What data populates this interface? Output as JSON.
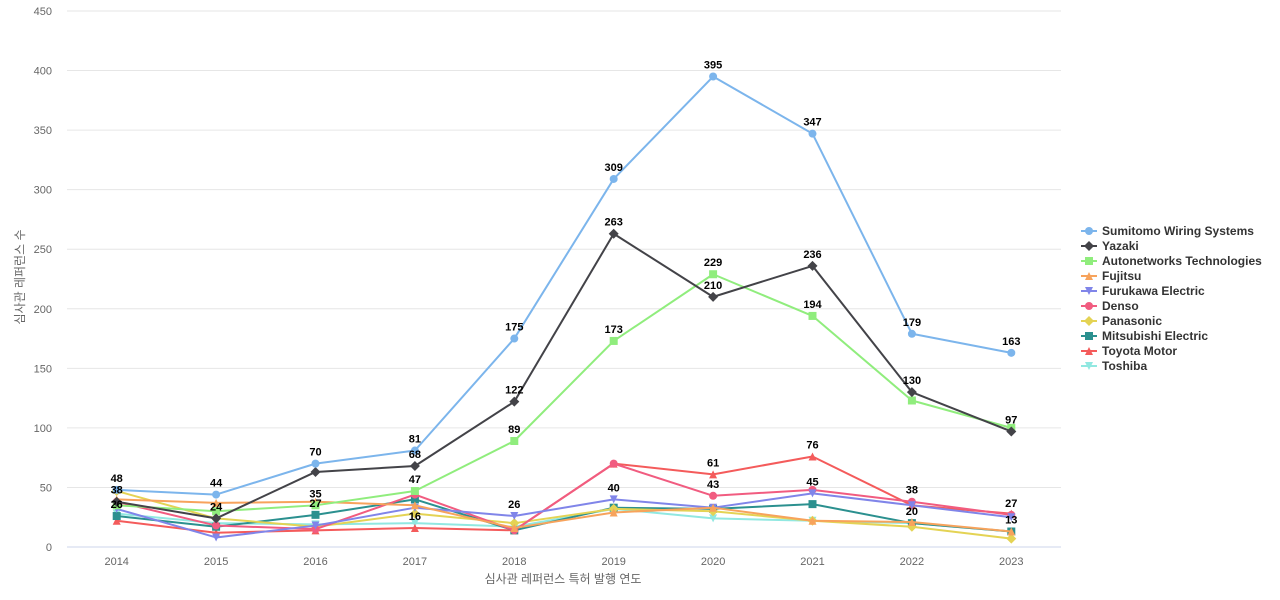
{
  "chart_data": {
    "type": "line",
    "xlabel": "심사관 레퍼런스 특허 발행 연도",
    "ylabel": "심사관 레퍼런스 수",
    "x": [
      "2014",
      "2015",
      "2016",
      "2017",
      "2018",
      "2019",
      "2020",
      "2021",
      "2022",
      "2023"
    ],
    "ylim": [
      0,
      450
    ],
    "yticks": [
      0,
      50,
      100,
      150,
      200,
      250,
      300,
      350,
      400,
      450
    ],
    "grid": "horizontal",
    "legend_position": "right",
    "series": [
      {
        "name": "Sumitomo Wiring Systems",
        "color": "#7cb5ec",
        "marker": "circle",
        "values": [
          48,
          44,
          70,
          81,
          175,
          309,
          395,
          347,
          179,
          163
        ],
        "labeled": true
      },
      {
        "name": "Yazaki",
        "color": "#434348",
        "marker": "diamond",
        "values": [
          38,
          24,
          63,
          68,
          122,
          263,
          210,
          236,
          130,
          97
        ],
        "labeled": [
          true,
          true,
          false,
          true,
          true,
          true,
          true,
          true,
          true,
          true
        ]
      },
      {
        "name": "Autonetworks Technologies",
        "color": "#90ed7d",
        "marker": "square",
        "values": [
          35,
          30,
          35,
          47,
          89,
          173,
          229,
          194,
          123,
          100
        ],
        "labeled": [
          false,
          false,
          true,
          true,
          true,
          true,
          true,
          true,
          false,
          false
        ]
      },
      {
        "name": "Fujitsu",
        "color": "#f7a35c",
        "marker": "triangle",
        "values": [
          40,
          37,
          38,
          35,
          16,
          29,
          33,
          22,
          21,
          13
        ],
        "labeled": false
      },
      {
        "name": "Furukawa Electric",
        "color": "#8085e9",
        "marker": "triangle-down",
        "values": [
          32,
          8,
          18,
          33,
          26,
          40,
          33,
          45,
          35,
          25
        ],
        "labeled": [
          false,
          false,
          false,
          false,
          true,
          true,
          false,
          true,
          false,
          false
        ]
      },
      {
        "name": "Denso",
        "color": "#f15c80",
        "marker": "circle",
        "values": [
          38,
          18,
          15,
          44,
          14,
          70,
          43,
          48,
          38,
          27
        ],
        "labeled": [
          false,
          false,
          false,
          false,
          false,
          false,
          true,
          false,
          true,
          true
        ]
      },
      {
        "name": "Panasonic",
        "color": "#e4d354",
        "marker": "diamond",
        "values": [
          47,
          24,
          17,
          28,
          20,
          32,
          30,
          22,
          17,
          7
        ],
        "labeled": false
      },
      {
        "name": "Mitsubishi Electric",
        "color": "#2b908f",
        "marker": "square",
        "values": [
          26,
          17,
          27,
          40,
          14,
          33,
          32,
          36,
          20,
          13
        ],
        "labeled": [
          true,
          false,
          true,
          false,
          false,
          false,
          false,
          false,
          true,
          true
        ]
      },
      {
        "name": "Toyota Motor",
        "color": "#f45b5b",
        "marker": "triangle",
        "values": [
          22,
          12,
          14,
          16,
          14,
          70,
          61,
          76,
          35,
          28
        ],
        "labeled": [
          false,
          false,
          false,
          true,
          false,
          false,
          true,
          true,
          false,
          false
        ]
      },
      {
        "name": "Toshiba",
        "color": "#91e8e1",
        "marker": "triangle-down",
        "values": [
          28,
          20,
          19,
          20,
          17,
          32,
          24,
          22,
          20,
          13
        ],
        "labeled": false
      }
    ]
  }
}
